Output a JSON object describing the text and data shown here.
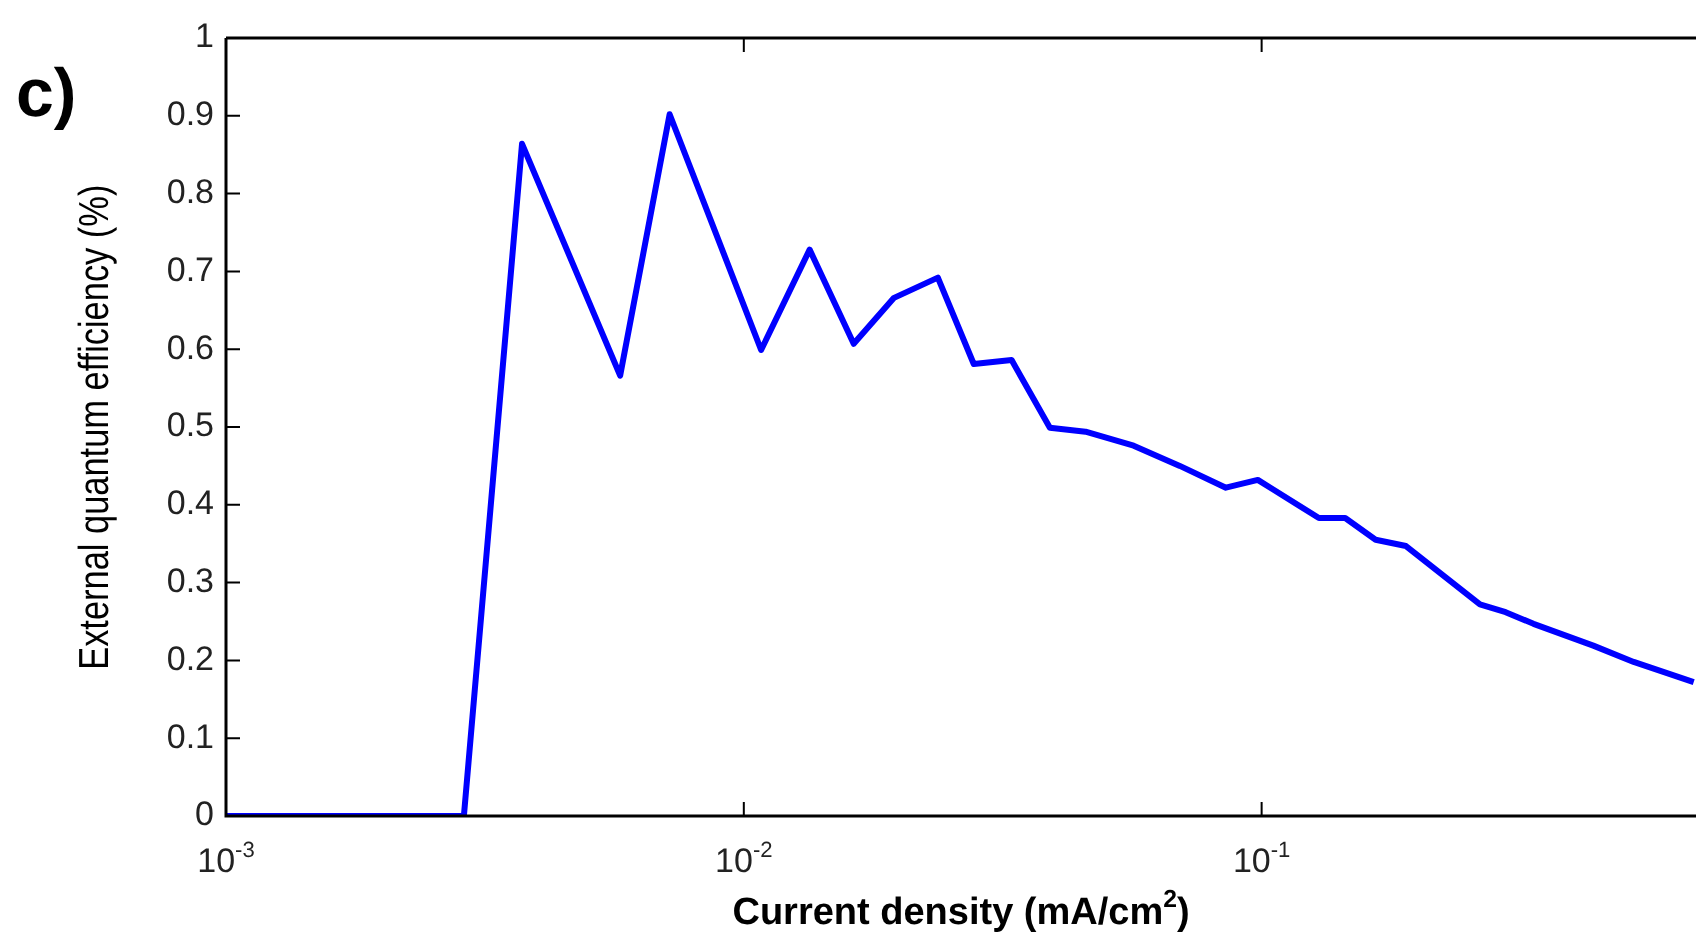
{
  "chart_data": {
    "type": "line",
    "xlabel": "Current density (mA/cm$^{2}$)",
    "ylabel": "External quantum efficiency (%)",
    "annotations": [
      "c)"
    ],
    "log": "x",
    "xlim": [
      0.001,
      0.69
    ],
    "xticks": [
      {
        "value": 0.001,
        "label": "10$^{-3}$"
      },
      {
        "value": 0.01,
        "label": "10$^{-2}$"
      },
      {
        "value": 0.1,
        "label": "10$^{-1}$"
      }
    ],
    "ylim": [
      0,
      1
    ],
    "yticks": [
      0,
      0.1,
      0.2,
      0.3,
      0.4,
      0.5,
      0.6,
      0.7,
      0.8,
      0.9,
      1
    ],
    "grid": false,
    "legend": false,
    "marker": "none",
    "line_style": "solid",
    "series": [
      {
        "color": "#0000ff",
        "x": [
          0.001,
          0.00288,
          0.00373,
          0.00577,
          0.00719,
          0.0108,
          0.0134,
          0.0163,
          0.0195,
          0.0237,
          0.0278,
          0.0329,
          0.039,
          0.0457,
          0.0566,
          0.0695,
          0.0853,
          0.0983,
          0.129,
          0.145,
          0.166,
          0.19,
          0.264,
          0.296,
          0.335,
          0.437,
          0.523,
          0.683
        ],
        "values": [
          0,
          0,
          0.864,
          0.566,
          0.902,
          0.599,
          0.728,
          0.607,
          0.666,
          0.692,
          0.581,
          0.586,
          0.499,
          0.494,
          0.476,
          0.45,
          0.422,
          0.432,
          0.383,
          0.383,
          0.355,
          0.347,
          0.272,
          0.262,
          0.247,
          0.219,
          0.198,
          0.172
        ]
      }
    ]
  }
}
